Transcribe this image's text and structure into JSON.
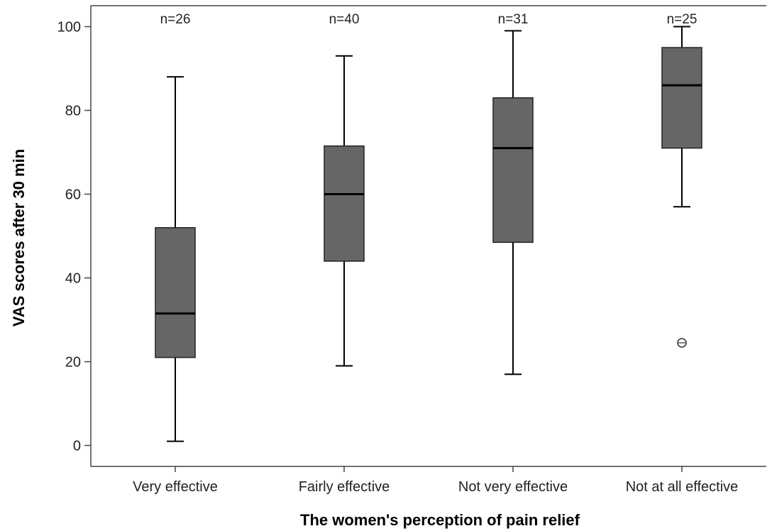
{
  "chart_data": {
    "type": "boxplot",
    "title": "",
    "xlabel": "The women's perception of pain relief",
    "ylabel": "VAS scores after 30 min",
    "ylim": [
      -5,
      105
    ],
    "yticks": [
      0,
      20,
      40,
      60,
      80,
      100
    ],
    "categories": [
      "Very effective",
      "Fairly effective",
      "Not very effective",
      "Not at all effective"
    ],
    "n_labels": [
      "n=26",
      "n=40",
      "n=31",
      "n=25"
    ],
    "boxes": [
      {
        "category": "Very effective",
        "whisker_low": 1,
        "q1": 21,
        "median": 31.5,
        "q3": 52,
        "whisker_high": 88,
        "outliers": []
      },
      {
        "category": "Fairly effective",
        "whisker_low": 19,
        "q1": 44,
        "median": 60,
        "q3": 71.5,
        "whisker_high": 93,
        "outliers": []
      },
      {
        "category": "Not very effective",
        "whisker_low": 17,
        "q1": 48.5,
        "median": 71,
        "q3": 83,
        "whisker_high": 99,
        "outliers": []
      },
      {
        "category": "Not at all effective",
        "whisker_low": 57,
        "q1": 71,
        "median": 86,
        "q3": 95,
        "whisker_high": 100,
        "outliers": [
          24.5
        ]
      }
    ],
    "grid": false,
    "legend": "none",
    "box_color": "#666666",
    "line_color": "#000000"
  }
}
